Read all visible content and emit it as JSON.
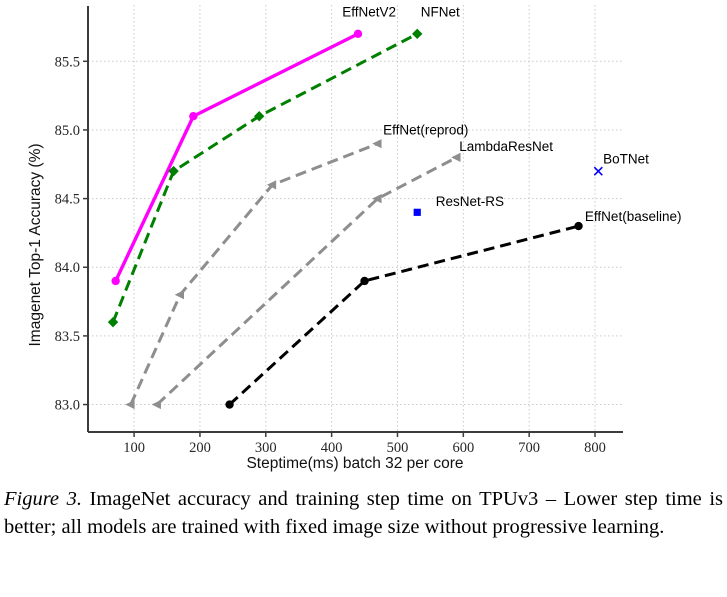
{
  "figure": {
    "caption": {
      "label": "Figure 3.",
      "text": " ImageNet accuracy and training step time on TPUv3 – Lower step time is better; all models are trained with fixed image size without progressive learning."
    }
  },
  "chart_data": {
    "type": "line",
    "title": "",
    "xlabel": "Steptime(ms) batch 32 per core",
    "ylabel": "Imagenet Top-1 Accuracy (%)",
    "xlim": [
      30,
      842.5
    ],
    "ylim": [
      82.8,
      85.91
    ],
    "grid": true,
    "legend_position": "inline-annotations",
    "xticks": [
      {
        "v": 100,
        "label": "100"
      },
      {
        "v": 200,
        "label": "200"
      },
      {
        "v": 300,
        "label": "300"
      },
      {
        "v": 400,
        "label": "400"
      },
      {
        "v": 500,
        "label": "500"
      },
      {
        "v": 600,
        "label": "600"
      },
      {
        "v": 700,
        "label": "700"
      },
      {
        "v": 800,
        "label": "800"
      }
    ],
    "yticks": [
      {
        "v": 83.0,
        "label": "83.0"
      },
      {
        "v": 83.5,
        "label": "83.5"
      },
      {
        "v": 84.0,
        "label": "84.0"
      },
      {
        "v": 84.5,
        "label": "84.5"
      },
      {
        "v": 85.0,
        "label": "85.0"
      },
      {
        "v": 85.5,
        "label": "85.5"
      }
    ],
    "series": [
      {
        "name": "EffNetV2",
        "color": "#ff00ff",
        "line": "solid",
        "marker": "circle",
        "points": [
          [
            72,
            83.9
          ],
          [
            190,
            85.1
          ],
          [
            440,
            85.7
          ]
        ],
        "label_at": [
          457,
          85.86
        ]
      },
      {
        "name": "NFNet",
        "color": "#008000",
        "line": "dashed",
        "marker": "diamond",
        "points": [
          [
            68,
            83.6
          ],
          [
            160,
            84.7
          ],
          [
            290,
            85.1
          ],
          [
            530,
            85.7
          ]
        ],
        "label_at": [
          565,
          85.86
        ]
      },
      {
        "name": "EffNet(reprod)",
        "color": "#8e8e8e",
        "line": "dashed",
        "marker": "triangle",
        "points": [
          [
            95,
            83.0
          ],
          [
            170,
            83.8
          ],
          [
            310,
            84.6
          ],
          [
            470,
            84.9
          ]
        ],
        "label_at": [
          543,
          85.0
        ]
      },
      {
        "name": "LambdaResNet",
        "color": "#8e8e8e",
        "line": "dashed",
        "marker": "triangle",
        "points": [
          [
            135,
            83.0
          ],
          [
            470,
            84.5
          ],
          [
            590,
            84.8
          ]
        ],
        "label_at": [
          665,
          84.88
        ]
      },
      {
        "name": "EffNet(baseline)",
        "color": "#000000",
        "line": "dashed",
        "marker": "circle",
        "points": [
          [
            245,
            83.0
          ],
          [
            450,
            83.9
          ],
          [
            775,
            84.3
          ]
        ],
        "label_at": [
          858,
          84.37
        ]
      }
    ],
    "scatter": [
      {
        "name": "ResNet-RS",
        "color": "#0000ff",
        "marker": "square",
        "point": [
          530,
          84.4
        ],
        "label_at": [
          610,
          84.48
        ]
      },
      {
        "name": "BoTNet",
        "color": "#0000ff",
        "marker": "x",
        "point": [
          805,
          84.7
        ],
        "label_at": [
          847,
          84.79
        ]
      }
    ]
  }
}
